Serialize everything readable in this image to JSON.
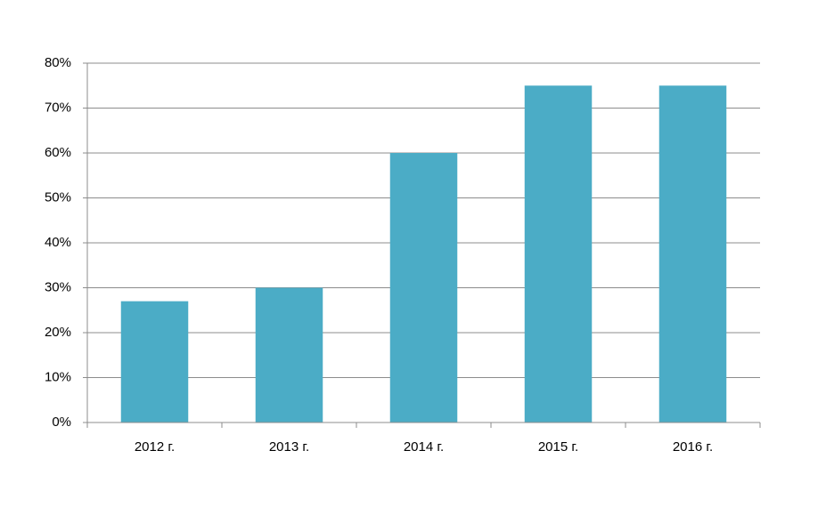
{
  "chart_data": {
    "type": "bar",
    "categories": [
      "2012 г.",
      "2013 г.",
      "2014 г.",
      "2015 г.",
      "2016 г."
    ],
    "values": [
      27,
      30,
      60,
      75,
      75
    ],
    "color": "#4bacc6",
    "ylim": [
      0,
      80
    ],
    "yticks": [
      {
        "value": 0,
        "label": "0%"
      },
      {
        "value": 10,
        "label": "10%"
      },
      {
        "value": 20,
        "label": "20%"
      },
      {
        "value": 30,
        "label": "30%"
      },
      {
        "value": 40,
        "label": "40%"
      },
      {
        "value": 50,
        "label": "50%"
      },
      {
        "value": 60,
        "label": "60%"
      },
      {
        "value": 70,
        "label": "70%"
      },
      {
        "value": 80,
        "label": "80%"
      }
    ],
    "grid": true
  }
}
